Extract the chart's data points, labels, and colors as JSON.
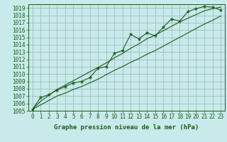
{
  "title": "Graphe pression niveau de la mer (hPa)",
  "bg_color": "#c8eaea",
  "grid_color": "#9bbfbf",
  "line_color": "#1a5c1a",
  "ylim": [
    1005,
    1019.5
  ],
  "xlim": [
    -0.5,
    23.5
  ],
  "yticks": [
    1005,
    1006,
    1007,
    1008,
    1009,
    1010,
    1011,
    1012,
    1013,
    1014,
    1015,
    1016,
    1017,
    1018,
    1019
  ],
  "xticks": [
    0,
    1,
    2,
    3,
    4,
    5,
    6,
    7,
    8,
    9,
    10,
    11,
    12,
    13,
    14,
    15,
    16,
    17,
    18,
    19,
    20,
    21,
    22,
    23
  ],
  "hours": [
    0,
    1,
    2,
    3,
    4,
    5,
    6,
    7,
    8,
    9,
    10,
    11,
    12,
    13,
    14,
    15,
    16,
    17,
    18,
    19,
    20,
    21,
    22,
    23
  ],
  "pressure_main": [
    1005.2,
    1006.8,
    1007.2,
    1007.8,
    1008.3,
    1008.8,
    1009.0,
    1009.5,
    1010.8,
    1011.0,
    1012.8,
    1013.2,
    1015.4,
    1014.8,
    1015.6,
    1015.2,
    1016.4,
    1017.5,
    1017.2,
    1018.5,
    1018.9,
    1019.2,
    1019.1,
    1018.7
  ],
  "pressure_low": [
    1005.2,
    1005.8,
    1006.4,
    1007.0,
    1007.4,
    1007.9,
    1008.3,
    1008.8,
    1009.3,
    1009.9,
    1010.5,
    1011.0,
    1011.6,
    1012.1,
    1012.7,
    1013.2,
    1013.8,
    1014.4,
    1015.0,
    1015.6,
    1016.2,
    1016.8,
    1017.3,
    1017.9
  ],
  "pressure_high": [
    1005.2,
    1006.3,
    1007.1,
    1007.9,
    1008.5,
    1009.1,
    1009.7,
    1010.3,
    1010.9,
    1011.5,
    1012.2,
    1012.8,
    1013.5,
    1014.1,
    1014.8,
    1015.3,
    1015.9,
    1016.5,
    1017.1,
    1017.6,
    1018.1,
    1018.6,
    1018.9,
    1019.1
  ],
  "ylabel_fontsize": 5.5,
  "xlabel_fontsize": 5.5,
  "title_fontsize": 6.5,
  "lw_main": 0.8,
  "lw_trend": 0.8,
  "marker_size": 3.5
}
